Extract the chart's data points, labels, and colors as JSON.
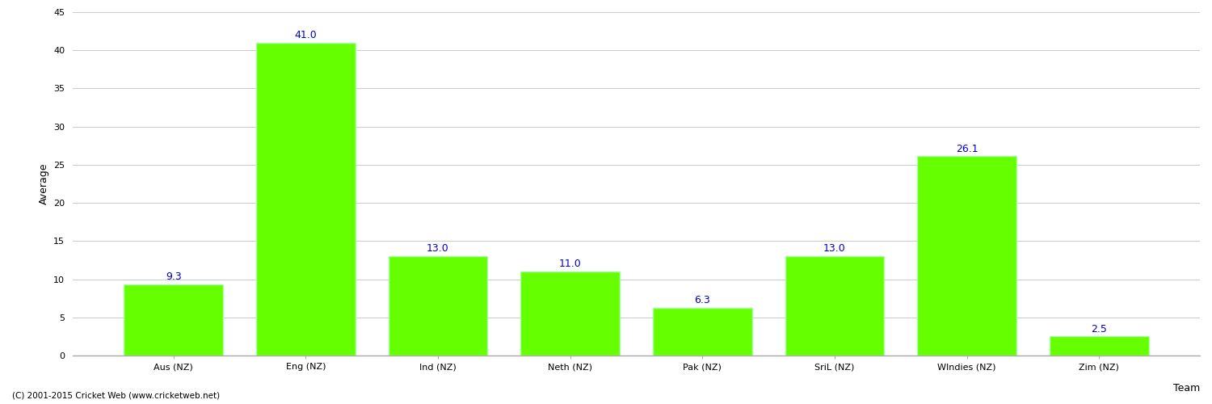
{
  "categories": [
    "Aus (NZ)",
    "Eng (NZ)",
    "Ind (NZ)",
    "Neth (NZ)",
    "Pak (NZ)",
    "SriL (NZ)",
    "WIndies (NZ)",
    "Zim (NZ)"
  ],
  "values": [
    9.3,
    41.0,
    13.0,
    11.0,
    6.3,
    13.0,
    26.1,
    2.5
  ],
  "bar_color": "#66ff00",
  "bar_edge_color": "#aaffaa",
  "annotation_color": "#0000cc",
  "ylabel": "Average",
  "xlabel": "Team",
  "ylim": [
    0,
    45
  ],
  "yticks": [
    0,
    5,
    10,
    15,
    20,
    25,
    30,
    35,
    40,
    45
  ],
  "background_color": "#ffffff",
  "grid_color": "#cccccc",
  "annotation_fontsize": 9,
  "label_fontsize": 9,
  "tick_fontsize": 8,
  "footer_text": "(C) 2001-2015 Cricket Web (www.cricketweb.net)"
}
